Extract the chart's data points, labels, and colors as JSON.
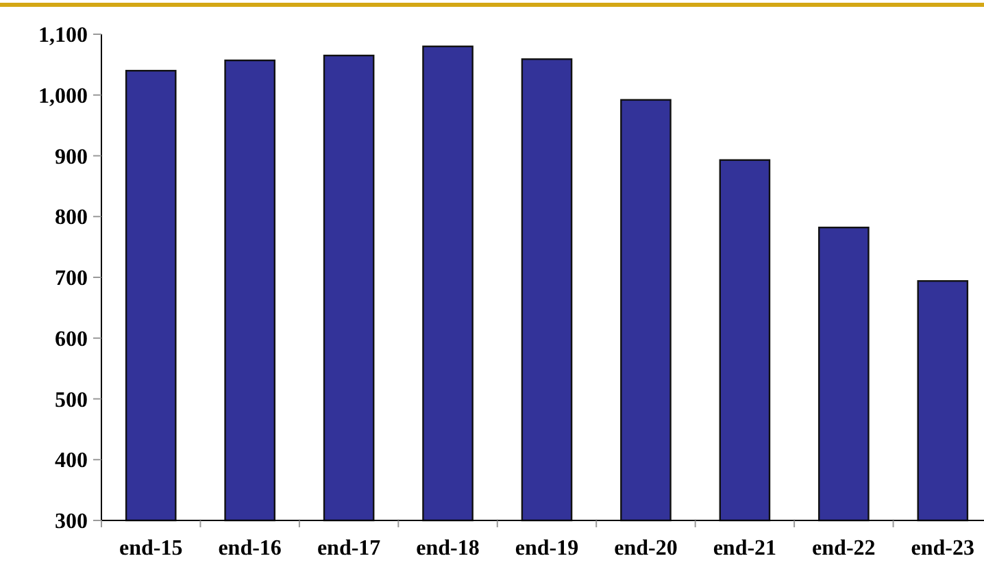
{
  "chart_data": {
    "type": "bar",
    "categories": [
      "end-15",
      "end-16",
      "end-17",
      "end-18",
      "end-19",
      "end-20",
      "end-21",
      "end-22",
      "end-23"
    ],
    "values": [
      1040,
      1057,
      1065,
      1080,
      1059,
      992,
      893,
      782,
      694
    ],
    "color": "#333399",
    "ylim": [
      300,
      1100
    ],
    "yticks": [
      300,
      400,
      500,
      600,
      700,
      800,
      900,
      {
        "value": 1000,
        "label": "1,000"
      },
      {
        "value": 1100,
        "label": "1,100"
      }
    ],
    "grid": false
  }
}
